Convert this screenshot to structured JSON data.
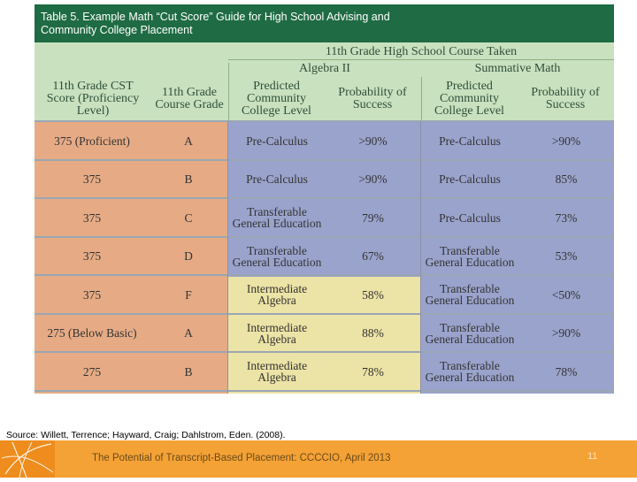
{
  "table": {
    "title_line1": "Table 5. Example Math “Cut Score” Guide for High School Advising and",
    "title_line2": "Community College Placement",
    "course_taken_header": "11th Grade High School Course Taken",
    "group_algebra": "Algebra II",
    "group_summative": "Summative Math",
    "col_cst": "11th Grade CST Score (Proficiency Level)",
    "col_grade": "11th Grade Course Grade",
    "col_pred_level": "Predicted Community College Level",
    "col_prob": "Probability of Success",
    "rows": [
      {
        "cst": "375 (Proficient)",
        "grade": "A",
        "alg_level": "Pre-Calculus",
        "alg_prob": ">90%",
        "sum_level": "Pre-Calculus",
        "sum_prob": ">90%"
      },
      {
        "cst": "375",
        "grade": "B",
        "alg_level": "Pre-Calculus",
        "alg_prob": ">90%",
        "sum_level": "Pre-Calculus",
        "sum_prob": "85%"
      },
      {
        "cst": "375",
        "grade": "C",
        "alg_level": "Transferable General Education",
        "alg_prob": "79%",
        "sum_level": "Pre-Calculus",
        "sum_prob": "73%"
      },
      {
        "cst": "375",
        "grade": "D",
        "alg_level": "Transferable General Education",
        "alg_prob": "67%",
        "sum_level": "Transferable General Education",
        "sum_prob": "53%"
      },
      {
        "cst": "375",
        "grade": "F",
        "alg_level": "Intermediate Algebra",
        "alg_prob": "58%",
        "sum_level": "Transferable General Education",
        "sum_prob": "<50%"
      },
      {
        "cst": "275 (Below Basic)",
        "grade": "A",
        "alg_level": "Intermediate Algebra",
        "alg_prob": "88%",
        "sum_level": "Transferable General Education",
        "sum_prob": ">90%"
      },
      {
        "cst": "275",
        "grade": "B",
        "alg_level": "Intermediate Algebra",
        "alg_prob": "78%",
        "sum_level": "Transferable General Education",
        "sum_prob": "78%"
      }
    ]
  },
  "footer": {
    "source": "Source: Willett, Terrence; Hayward, Craig; Dahlstrom, Eden. (2008).",
    "presentation": "The Potential of Transcript-Based Placement: CCCCIO, April 2013",
    "page_number": "11"
  },
  "colors": {
    "title_bar": "#1f6b43",
    "header_bg": "#c9e1bf",
    "left_band": "#e6ab85",
    "blue_band": "#9aa3cc",
    "yellow_band": "#ece3a6",
    "footer_orange": "#f4a236"
  }
}
